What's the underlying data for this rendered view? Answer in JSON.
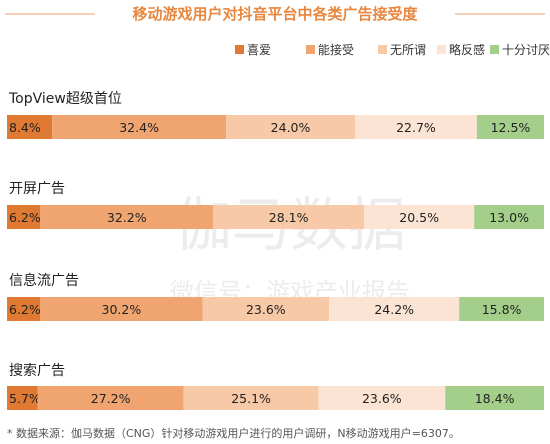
{
  "chart_data": {
    "type": "bar",
    "orientation": "horizontal",
    "stacked": "percent",
    "title": "移动游戏用户对抖音平台中各类广告接受度",
    "categories": [
      "TopView超级首位",
      "开屏广告",
      "信息流广告",
      "搜索广告"
    ],
    "series": [
      {
        "name": "喜爱",
        "color": "#e07a32",
        "values": [
          8.4,
          6.2,
          6.2,
          5.7
        ]
      },
      {
        "name": "能接受",
        "color": "#f0a571",
        "values": [
          32.4,
          32.2,
          30.2,
          27.2
        ]
      },
      {
        "name": "无所谓",
        "color": "#f7c9a6",
        "values": [
          24.0,
          28.1,
          23.6,
          25.1
        ]
      },
      {
        "name": "略反感",
        "color": "#fbe4d3",
        "values": [
          22.7,
          20.5,
          24.2,
          23.6
        ]
      },
      {
        "name": "十分讨厌",
        "color": "#a4cf8b",
        "values": [
          12.5,
          13.0,
          15.8,
          18.4
        ]
      }
    ],
    "value_format": "percent_one_decimal",
    "legend_position": "top-right"
  },
  "note": "* 数据来源：伽马数据（CNG）针对移动游戏用户进行的用户调研，N移动游戏用户=6307。",
  "watermark": {
    "main": "伽马数据",
    "sub": "微信号：游戏产业报告"
  }
}
